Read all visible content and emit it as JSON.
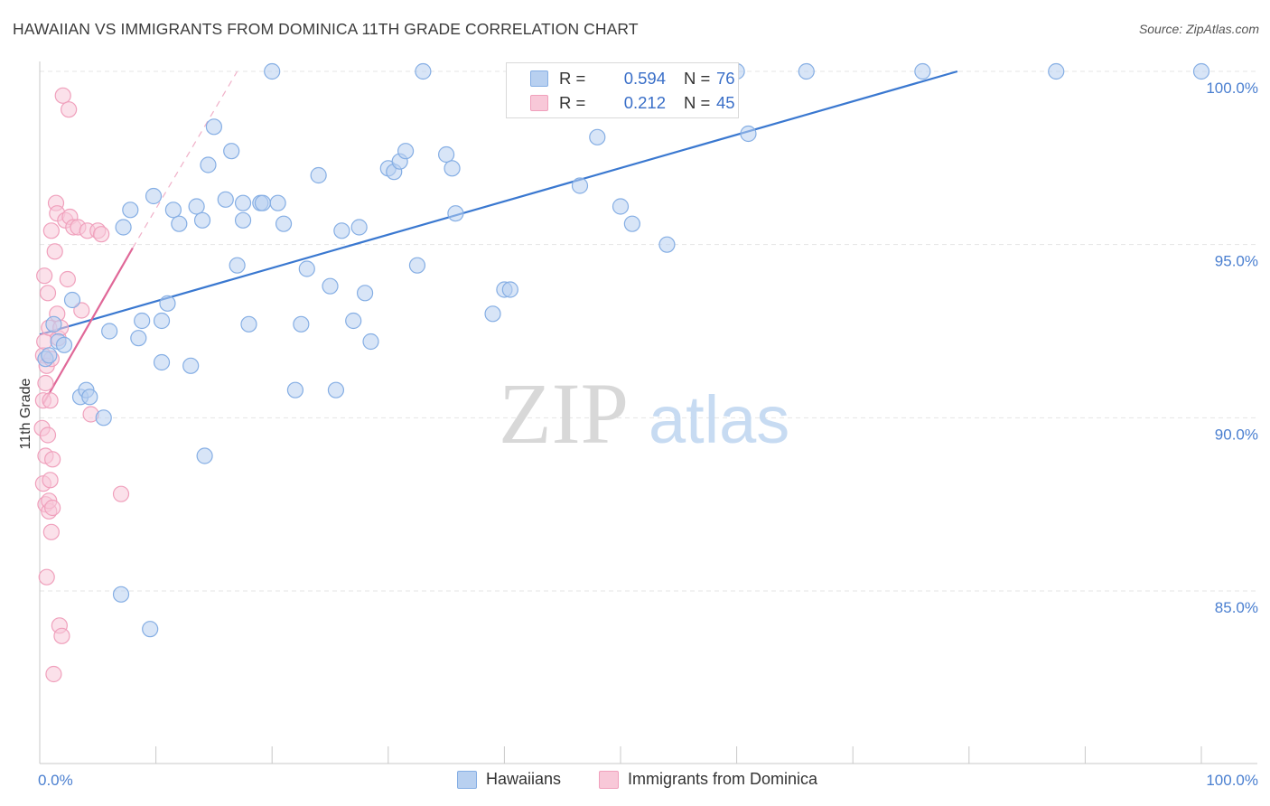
{
  "title": "HAWAIIAN VS IMMIGRANTS FROM DOMINICA 11TH GRADE CORRELATION CHART",
  "source": "Source: ZipAtlas.com",
  "watermark": {
    "zip": "ZIP",
    "atlas": "atlas"
  },
  "colors": {
    "blue_fill": "#b8d0f0",
    "blue_stroke": "#85aee4",
    "blue_line": "#3a78d0",
    "pink_fill": "#f8c8d8",
    "pink_stroke": "#f0a0bc",
    "pink_line": "#e06898",
    "grid": "#e4e4e4",
    "tick_text": "#4a7fd0"
  },
  "legend_top": {
    "rows": [
      {
        "r_label": "R =",
        "r_value": "0.594",
        "n_label": "N =",
        "n_value": "76",
        "series": "blue"
      },
      {
        "r_label": "R =",
        "r_value": "0.212",
        "n_label": "N =",
        "n_value": "45",
        "series": "pink"
      }
    ]
  },
  "legend_bottom": [
    {
      "label": "Hawaiians",
      "series": "blue"
    },
    {
      "label": "Immigrants from Dominica",
      "series": "pink"
    }
  ],
  "chart_data": {
    "type": "scatter",
    "title": "HAWAIIAN VS IMMIGRANTS FROM DOMINICA 11TH GRADE CORRELATION CHART",
    "xlabel": "",
    "ylabel": "11th Grade",
    "xlim": [
      0,
      100
    ],
    "ylim": [
      80.5,
      100.5
    ],
    "x_tick_labels": [
      "0.0%",
      "100.0%"
    ],
    "y_ticks": [
      85,
      90,
      95,
      100
    ],
    "y_tick_labels": [
      "85.0%",
      "90.0%",
      "95.0%",
      "100.0%"
    ],
    "grid": true,
    "legend_position": "top-center",
    "series": [
      {
        "name": "Hawaiians",
        "color": "blue",
        "R": 0.594,
        "N": 76,
        "trend": {
          "x": [
            0,
            79
          ],
          "y": [
            92.4,
            100.0
          ]
        },
        "x": [
          0.5,
          0.8,
          1.2,
          1.6,
          2.1,
          2.8,
          3.5,
          4.0,
          4.3,
          5.5,
          6.0,
          7.0,
          7.2,
          7.8,
          8.5,
          8.8,
          9.5,
          9.8,
          10.5,
          10.5,
          11.0,
          11.5,
          12.0,
          13.0,
          13.5,
          14.0,
          14.2,
          14.5,
          15.0,
          16.0,
          16.5,
          17.0,
          17.5,
          17.5,
          18.0,
          19.0,
          19.2,
          20.0,
          20.5,
          21.0,
          22.0,
          22.5,
          23.0,
          24.0,
          25.0,
          25.5,
          26.0,
          27.0,
          27.5,
          28.0,
          28.5,
          30.0,
          30.5,
          31.0,
          31.5,
          32.5,
          33.0,
          35.0,
          35.5,
          35.8,
          39.0,
          40.0,
          40.5,
          43.0,
          46.5,
          48.0,
          50.0,
          51.0,
          54.0,
          56.5,
          60.0,
          61.0,
          66.0,
          76.0,
          87.5,
          100.0
        ],
        "y": [
          91.7,
          91.8,
          92.7,
          92.2,
          92.1,
          93.4,
          90.6,
          90.8,
          90.6,
          90.0,
          92.5,
          84.9,
          95.5,
          96.0,
          92.3,
          92.8,
          83.9,
          96.4,
          92.8,
          91.6,
          93.3,
          96.0,
          95.6,
          91.5,
          96.1,
          95.7,
          88.9,
          97.3,
          98.4,
          96.3,
          97.7,
          94.4,
          96.2,
          95.7,
          92.7,
          96.2,
          96.2,
          100.0,
          96.2,
          95.6,
          90.8,
          92.7,
          94.3,
          97.0,
          93.8,
          90.8,
          95.4,
          92.8,
          95.5,
          93.6,
          92.2,
          97.2,
          97.1,
          97.4,
          97.7,
          94.4,
          100.0,
          97.6,
          97.2,
          95.9,
          93.0,
          93.7,
          93.7,
          100.0,
          96.7,
          98.1,
          96.1,
          95.6,
          95.0,
          100.0,
          100.0,
          98.2,
          100.0,
          100.0,
          100.0,
          100.0
        ]
      },
      {
        "name": "Immigrants from Dominica",
        "color": "pink",
        "R": 0.212,
        "N": 45,
        "trend": {
          "x": [
            0.3,
            8.0
          ],
          "y": [
            90.4,
            94.9
          ]
        },
        "trend_dashed": {
          "x": [
            8.0,
            17.0
          ],
          "y": [
            94.9,
            100.0
          ]
        },
        "x": [
          0.2,
          0.3,
          0.3,
          0.3,
          0.4,
          0.4,
          0.5,
          0.5,
          0.5,
          0.6,
          0.6,
          0.7,
          0.7,
          0.8,
          0.8,
          0.8,
          0.9,
          0.9,
          1.0,
          1.0,
          1.0,
          1.1,
          1.1,
          1.2,
          1.3,
          1.4,
          1.5,
          1.5,
          1.6,
          1.7,
          1.8,
          1.9,
          2.0,
          2.2,
          2.4,
          2.5,
          2.6,
          2.9,
          3.3,
          3.6,
          4.1,
          4.4,
          5.0,
          5.3,
          7.0
        ],
        "y": [
          89.7,
          88.1,
          91.8,
          90.5,
          92.2,
          94.1,
          87.5,
          88.9,
          91.0,
          85.4,
          91.5,
          93.6,
          89.5,
          87.3,
          87.6,
          92.6,
          90.5,
          88.2,
          86.7,
          95.4,
          91.7,
          87.4,
          88.8,
          82.6,
          94.8,
          96.2,
          95.9,
          93.0,
          92.3,
          84.0,
          92.6,
          83.7,
          99.3,
          95.7,
          94.0,
          98.9,
          95.8,
          95.5,
          95.5,
          93.1,
          95.4,
          90.1,
          95.4,
          95.3,
          87.8
        ]
      }
    ]
  }
}
